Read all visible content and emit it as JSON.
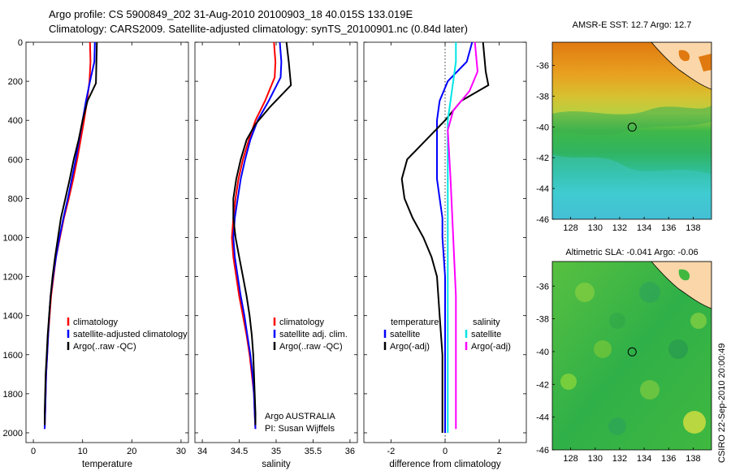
{
  "header": {
    "line1": "Argo profile: CS 5900849_202 31-Aug-2010 20100903_18 40.015S 133.019E",
    "line2": "Climatology: CARS2009. Satellite-adjusted climatology: synTS_20100901.nc (0.84d later)"
  },
  "stamp": "CSIRO 22-Sep-2010 20:00:49",
  "colors": {
    "climatology": "#ff0000",
    "satellite": "#0000ff",
    "argo": "#000000",
    "satellite_diff": "#00e5e5",
    "argo_diff_salinity": "#ff00ff"
  },
  "chart_data": [
    {
      "type": "line",
      "id": "temperature",
      "xlabel": "temperature",
      "ylabel": "",
      "xlim": [
        -1.5,
        31.5
      ],
      "ylim": [
        0,
        2050
      ],
      "y_reversed": true,
      "xticks": [
        0,
        10,
        20,
        30
      ],
      "xtick_labels": [
        "0",
        "10",
        "20",
        "30"
      ],
      "yticks": [
        0,
        200,
        400,
        600,
        800,
        1000,
        1200,
        1400,
        1600,
        1800,
        2000
      ],
      "ytick_labels": [
        "0",
        "200",
        "400",
        "600",
        "800",
        "1000",
        "1200",
        "1400",
        "1600",
        "1800",
        "2000"
      ],
      "legend": [
        "climatology",
        "satellite-adjusted climatology",
        "Argo(..raw -QC)"
      ],
      "legend_position": "bottom-right",
      "series": [
        {
          "name": "climatology",
          "color": "#ff0000",
          "points": [
            [
              11.5,
              0
            ],
            [
              11.6,
              100
            ],
            [
              11.4,
              200
            ],
            [
              10.9,
              300
            ],
            [
              10.3,
              400
            ],
            [
              9.6,
              500
            ],
            [
              8.9,
              600
            ],
            [
              8.1,
              700
            ],
            [
              7.2,
              800
            ],
            [
              6.2,
              900
            ],
            [
              5.4,
              1000
            ],
            [
              4.6,
              1100
            ],
            [
              4.1,
              1200
            ],
            [
              3.6,
              1300
            ],
            [
              3.3,
              1400
            ],
            [
              3.0,
              1500
            ],
            [
              2.8,
              1600
            ],
            [
              2.6,
              1700
            ],
            [
              2.5,
              1800
            ],
            [
              2.4,
              1900
            ],
            [
              2.3,
              1980
            ]
          ]
        },
        {
          "name": "satellite-adjusted climatology",
          "color": "#0000ff",
          "points": [
            [
              12.5,
              0
            ],
            [
              12.4,
              100
            ],
            [
              11.5,
              200
            ],
            [
              10.7,
              300
            ],
            [
              10.0,
              400
            ],
            [
              9.3,
              500
            ],
            [
              8.6,
              600
            ],
            [
              7.8,
              700
            ],
            [
              7.0,
              800
            ],
            [
              6.1,
              900
            ],
            [
              5.3,
              1000
            ],
            [
              4.6,
              1100
            ],
            [
              4.0,
              1200
            ],
            [
              3.5,
              1300
            ],
            [
              3.2,
              1400
            ],
            [
              3.0,
              1500
            ],
            [
              2.8,
              1600
            ],
            [
              2.6,
              1700
            ],
            [
              2.5,
              1800
            ],
            [
              2.4,
              1900
            ],
            [
              2.3,
              1980
            ]
          ]
        },
        {
          "name": "Argo(..raw -QC)",
          "color": "#000000",
          "points": [
            [
              12.9,
              0
            ],
            [
              12.8,
              100
            ],
            [
              12.7,
              210
            ],
            [
              11.0,
              300
            ],
            [
              10.0,
              400
            ],
            [
              9.2,
              500
            ],
            [
              8.2,
              600
            ],
            [
              7.4,
              700
            ],
            [
              6.5,
              800
            ],
            [
              5.6,
              900
            ],
            [
              5.0,
              1000
            ],
            [
              4.4,
              1100
            ],
            [
              3.9,
              1200
            ],
            [
              3.5,
              1300
            ],
            [
              3.2,
              1400
            ],
            [
              2.9,
              1500
            ],
            [
              2.7,
              1600
            ],
            [
              2.5,
              1700
            ],
            [
              2.4,
              1800
            ],
            [
              2.3,
              1900
            ],
            [
              2.3,
              1960
            ]
          ]
        }
      ]
    },
    {
      "type": "line",
      "id": "salinity",
      "xlabel": "salinity",
      "ylabel": "",
      "xlim": [
        33.9,
        36.1
      ],
      "ylim": [
        0,
        2050
      ],
      "y_reversed": true,
      "xticks": [
        34,
        34.5,
        35,
        35.5,
        36
      ],
      "xtick_labels": [
        "34",
        "34.5",
        "35",
        "35.5",
        "36"
      ],
      "legend": [
        "climatology",
        "satellite adj. clim.",
        "Argo(..raw -QC)"
      ],
      "legend_position": "bottom-right",
      "annotation": [
        "Argo AUSTRALIA",
        "PI: Susan Wijffels"
      ],
      "series": [
        {
          "name": "climatology",
          "color": "#ff0000",
          "points": [
            [
              34.97,
              0
            ],
            [
              34.99,
              100
            ],
            [
              34.98,
              180
            ],
            [
              34.85,
              300
            ],
            [
              34.72,
              400
            ],
            [
              34.63,
              500
            ],
            [
              34.55,
              600
            ],
            [
              34.49,
              700
            ],
            [
              34.45,
              800
            ],
            [
              34.42,
              900
            ],
            [
              34.4,
              1000
            ],
            [
              34.42,
              1100
            ],
            [
              34.46,
              1200
            ],
            [
              34.5,
              1300
            ],
            [
              34.55,
              1400
            ],
            [
              34.6,
              1500
            ],
            [
              34.64,
              1600
            ],
            [
              34.67,
              1700
            ],
            [
              34.7,
              1800
            ],
            [
              34.71,
              1900
            ],
            [
              34.72,
              1980
            ]
          ]
        },
        {
          "name": "satellite adj. clim.",
          "color": "#0000ff",
          "points": [
            [
              35.05,
              0
            ],
            [
              35.07,
              100
            ],
            [
              35.06,
              180
            ],
            [
              34.9,
              300
            ],
            [
              34.75,
              400
            ],
            [
              34.65,
              500
            ],
            [
              34.58,
              600
            ],
            [
              34.52,
              700
            ],
            [
              34.48,
              800
            ],
            [
              34.44,
              900
            ],
            [
              34.42,
              1000
            ],
            [
              34.44,
              1100
            ],
            [
              34.48,
              1200
            ],
            [
              34.52,
              1300
            ],
            [
              34.57,
              1400
            ],
            [
              34.61,
              1500
            ],
            [
              34.65,
              1600
            ],
            [
              34.68,
              1700
            ],
            [
              34.7,
              1800
            ],
            [
              34.71,
              1900
            ],
            [
              34.72,
              1980
            ]
          ]
        },
        {
          "name": "Argo(..raw -QC)",
          "color": "#000000",
          "points": [
            [
              35.14,
              0
            ],
            [
              35.17,
              100
            ],
            [
              35.2,
              220
            ],
            [
              34.92,
              330
            ],
            [
              34.72,
              420
            ],
            [
              34.6,
              500
            ],
            [
              34.52,
              600
            ],
            [
              34.46,
              700
            ],
            [
              34.42,
              800
            ],
            [
              34.42,
              900
            ],
            [
              34.45,
              1000
            ],
            [
              34.5,
              1100
            ],
            [
              34.55,
              1200
            ],
            [
              34.6,
              1300
            ],
            [
              34.64,
              1400
            ],
            [
              34.67,
              1500
            ],
            [
              34.69,
              1600
            ],
            [
              34.7,
              1700
            ],
            [
              34.71,
              1800
            ],
            [
              34.72,
              1900
            ],
            [
              34.72,
              1960
            ]
          ]
        }
      ]
    },
    {
      "type": "line",
      "id": "difference",
      "xlabel": "difference from climatology",
      "ylabel": "",
      "xlim": [
        -3,
        3
      ],
      "ylim": [
        0,
        2050
      ],
      "y_reversed": true,
      "xticks": [
        -2,
        0,
        2
      ],
      "xtick_labels": [
        "-2",
        "0",
        "2"
      ],
      "legend_temperature": [
        "temperature",
        "satellite",
        "Argo(-adj)"
      ],
      "legend_salinity": [
        "salinity",
        "satellite",
        "Argo(-adj)"
      ],
      "legend_position": "bottom",
      "series": [
        {
          "name": "temperature satellite",
          "color": "#0000ff",
          "points": [
            [
              1.0,
              0
            ],
            [
              0.8,
              100
            ],
            [
              0.1,
              200
            ],
            [
              -0.2,
              300
            ],
            [
              -0.3,
              400
            ],
            [
              -0.3,
              500
            ],
            [
              -0.3,
              600
            ],
            [
              -0.3,
              700
            ],
            [
              -0.2,
              800
            ],
            [
              -0.1,
              900
            ],
            [
              -0.1,
              1000
            ],
            [
              0.0,
              1200
            ],
            [
              0.0,
              1500
            ],
            [
              0.0,
              1800
            ],
            [
              0.0,
              2000
            ]
          ]
        },
        {
          "name": "temperature Argo(-adj)",
          "color": "#000000",
          "points": [
            [
              1.4,
              0
            ],
            [
              1.5,
              150
            ],
            [
              1.6,
              220
            ],
            [
              0.6,
              300
            ],
            [
              0.0,
              400
            ],
            [
              -0.7,
              500
            ],
            [
              -1.4,
              600
            ],
            [
              -1.6,
              700
            ],
            [
              -1.5,
              800
            ],
            [
              -1.2,
              900
            ],
            [
              -0.8,
              1000
            ],
            [
              -0.5,
              1100
            ],
            [
              -0.3,
              1200
            ],
            [
              -0.2,
              1400
            ],
            [
              -0.1,
              1600
            ],
            [
              -0.1,
              1800
            ],
            [
              -0.1,
              2000
            ]
          ]
        },
        {
          "name": "salinity satellite",
          "color": "#00e5e5",
          "points": [
            [
              0.4,
              0
            ],
            [
              0.4,
              100
            ],
            [
              0.3,
              200
            ],
            [
              0.2,
              300
            ],
            [
              0.1,
              400
            ],
            [
              0.1,
              500
            ],
            [
              0.1,
              700
            ],
            [
              0.1,
              900
            ],
            [
              0.1,
              1100
            ],
            [
              0.1,
              1400
            ],
            [
              0.1,
              1800
            ],
            [
              0.1,
              2000
            ]
          ]
        },
        {
          "name": "salinity Argo(-adj)",
          "color": "#ff00ff",
          "points": [
            [
              1.1,
              0
            ],
            [
              1.2,
              150
            ],
            [
              0.9,
              250
            ],
            [
              0.3,
              350
            ],
            [
              0.1,
              450
            ],
            [
              0.2,
              700
            ],
            [
              0.3,
              1000
            ],
            [
              0.4,
              1300
            ],
            [
              0.4,
              1600
            ],
            [
              0.4,
              1900
            ],
            [
              0.4,
              1980
            ]
          ]
        }
      ]
    },
    {
      "type": "heatmap",
      "id": "sst_map",
      "title": "AMSR-E SST: 12.7  Argo: 12.7",
      "xlim": [
        126.5,
        139.5
      ],
      "ylim": [
        -46,
        -34.5
      ],
      "xticks": [
        128,
        130,
        132,
        134,
        136,
        138
      ],
      "yticks": [
        -36,
        -38,
        -40,
        -42,
        -44,
        -46
      ],
      "marker": {
        "lon": 133.019,
        "lat": -40.015
      }
    },
    {
      "type": "heatmap",
      "id": "sla_map",
      "title": "Altimetric SLA: -0.041  Argo: -0.06",
      "xlim": [
        126.5,
        139.5
      ],
      "ylim": [
        -46,
        -34.5
      ],
      "xticks": [
        128,
        130,
        132,
        134,
        136,
        138
      ],
      "yticks": [
        -36,
        -38,
        -40,
        -42,
        -44,
        -46
      ],
      "marker": {
        "lon": 133.019,
        "lat": -40.015
      }
    }
  ]
}
